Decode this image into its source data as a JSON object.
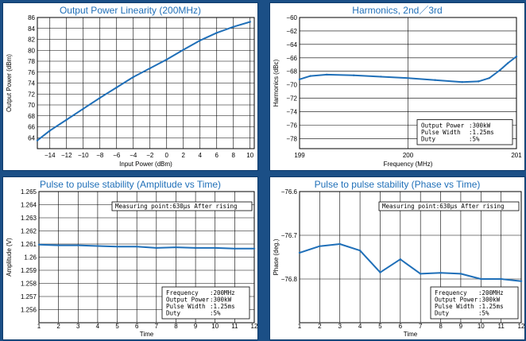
{
  "colors": {
    "background": "#1b4f86",
    "series": "#1f6fb8",
    "title": "#1f6fb8",
    "grid": "#000000"
  },
  "chart_data": [
    {
      "type": "line",
      "title": "Output Power Linearity (200MHz)",
      "xlabel": "Input Power (dBm)",
      "ylabel": "Output Power (dBm)",
      "xlim": [
        -15.5,
        10.5
      ],
      "ylim": [
        62,
        86
      ],
      "xticks": [
        -14,
        -12,
        -10,
        -8,
        -6,
        -4,
        -2,
        0,
        2,
        4,
        6,
        8,
        10
      ],
      "xtick_labels": [
        "−14",
        "−12",
        "−10",
        "−8",
        "−6",
        "−4",
        "−2",
        "0",
        "2",
        "4",
        "6",
        "8",
        "10"
      ],
      "yticks": [
        64,
        66,
        68,
        70,
        72,
        74,
        76,
        78,
        80,
        82,
        84,
        86
      ],
      "ytick_labels": [
        "64",
        "66",
        "68",
        "70",
        "72",
        "74",
        "76",
        "78",
        "80",
        "82",
        "84",
        "86"
      ],
      "grid": true,
      "x": [
        -15.5,
        -14,
        -12,
        -10,
        -8,
        -6,
        -4,
        -2,
        0,
        2,
        4,
        6,
        8,
        10
      ],
      "y": [
        63.5,
        65.3,
        67.3,
        69.3,
        71.3,
        73.2,
        75.1,
        76.7,
        78.3,
        80.1,
        81.8,
        83.2,
        84.3,
        85.2
      ],
      "annotation": []
    },
    {
      "type": "line",
      "title": "Harmonics, 2nd／3rd",
      "xlabel": "Frequency (MHz)",
      "ylabel": "Harmonics (dBc)",
      "xlim": [
        199,
        201
      ],
      "ylim": [
        -79.5,
        -60
      ],
      "xticks": [
        199,
        200,
        201
      ],
      "xtick_labels": [
        "199",
        "200",
        "201"
      ],
      "yticks": [
        -60,
        -62,
        -64,
        -66,
        -68,
        -70,
        -72,
        -74,
        -76,
        -78
      ],
      "ytick_labels": [
        "−60",
        "−62",
        "−64",
        "−66",
        "−68",
        "−70",
        "−72",
        "−74",
        "−76",
        "−78"
      ],
      "grid": true,
      "x": [
        199,
        199.1,
        199.25,
        199.5,
        199.75,
        200,
        200.25,
        200.5,
        200.65,
        200.75,
        200.85,
        200.92,
        201
      ],
      "y": [
        -69.2,
        -68.7,
        -68.5,
        -68.6,
        -68.8,
        -69.0,
        -69.3,
        -69.6,
        -69.5,
        -69.0,
        -67.8,
        -66.8,
        -65.8
      ],
      "annotation": [
        [
          "Output Power",
          ":300kW"
        ],
        [
          "Pulse Width",
          ":1.25ms"
        ],
        [
          "Duty",
          ":5%"
        ]
      ]
    },
    {
      "type": "line",
      "title": "Pulse to pulse stability (Amplitude vs Time)",
      "xlabel": "Time",
      "ylabel": "Amplitude (V)",
      "xlim": [
        1,
        12
      ],
      "ylim": [
        1.255,
        1.265
      ],
      "xticks": [
        1,
        2,
        3,
        4,
        5,
        6,
        7,
        8,
        9,
        10,
        11,
        12
      ],
      "xtick_labels": [
        "1",
        "2",
        "3",
        "4",
        "5",
        "6",
        "7",
        "8",
        "9",
        "10",
        "11",
        "12"
      ],
      "yticks": [
        1.256,
        1.257,
        1.258,
        1.259,
        1.26,
        1.261,
        1.262,
        1.263,
        1.264,
        1.265
      ],
      "ytick_labels": [
        "1.256",
        "1.257",
        "1.258",
        "1.259",
        "1.26",
        "1.261",
        "1.262",
        "1.263",
        "1.264",
        "1.265"
      ],
      "grid": true,
      "x": [
        1,
        2,
        3,
        4,
        5,
        6,
        7,
        8,
        9,
        10,
        11,
        12
      ],
      "y": [
        1.26095,
        1.2609,
        1.2609,
        1.26085,
        1.2608,
        1.2608,
        1.2607,
        1.26075,
        1.2607,
        1.2607,
        1.26065,
        1.26065
      ],
      "measuring": "Measuring point:630μs After rising",
      "annotation": [
        [
          "Frequency",
          ":200MHz"
        ],
        [
          "Output Power",
          ":300kW"
        ],
        [
          "Pulse Width",
          ":1.25ms"
        ],
        [
          "Duty",
          ":5%"
        ]
      ]
    },
    {
      "type": "line",
      "title": "Pulse to pulse stability (Phase vs Time)",
      "xlabel": "Time",
      "ylabel": "Phase (deg.)",
      "xlim": [
        1,
        12
      ],
      "ylim": [
        -76.9,
        -76.6
      ],
      "xticks": [
        1,
        2,
        3,
        4,
        5,
        6,
        7,
        8,
        9,
        10,
        11,
        12
      ],
      "xtick_labels": [
        "1",
        "2",
        "3",
        "4",
        "5",
        "6",
        "7",
        "8",
        "9",
        "10",
        "11",
        "12"
      ],
      "yticks": [
        -76.6,
        -76.7,
        -76.8
      ],
      "ytick_labels": [
        "−76.6",
        "−76.7",
        "−76.8"
      ],
      "grid": true,
      "x": [
        1,
        2,
        3,
        4,
        5,
        6,
        7,
        8,
        9,
        10,
        11,
        12
      ],
      "y": [
        -76.74,
        -76.725,
        -76.72,
        -76.735,
        -76.785,
        -76.755,
        -76.788,
        -76.786,
        -76.788,
        -76.8,
        -76.8,
        -76.805
      ],
      "measuring": "Measuring point:630μs After rising",
      "annotation": [
        [
          "Frequency",
          ":200MHz"
        ],
        [
          "Output Power",
          ":300kW"
        ],
        [
          "Pulse Width",
          ":1.25ms"
        ],
        [
          "Duty",
          ":5%"
        ]
      ]
    }
  ]
}
